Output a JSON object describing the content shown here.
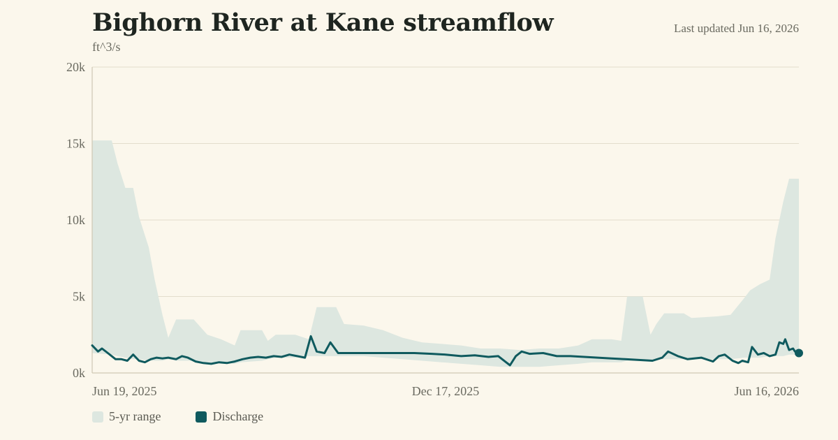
{
  "header": {
    "title": "Bighorn River at Kane streamflow",
    "last_updated": "Last updated Jun 16, 2026",
    "unit": "ft^3/s"
  },
  "legend": {
    "range_label": "5-yr range",
    "discharge_label": "Discharge"
  },
  "colors": {
    "background": "#fbf7ec",
    "range_fill": "#dde7e0",
    "discharge_line": "#0f5a5e",
    "gridline": "#e3ddcc",
    "axis": "#cfc8b4"
  },
  "chart_data": {
    "type": "area",
    "title": "Bighorn River at Kane streamflow",
    "ylabel": "ft^3/s",
    "xlabel": "",
    "x_range": [
      "2025-06-19",
      "2026-06-16"
    ],
    "ylim": [
      0,
      20000
    ],
    "y_ticks": [
      0,
      5000,
      10000,
      15000,
      20000
    ],
    "y_tick_labels": [
      "0k",
      "5k",
      "10k",
      "15k",
      "20k"
    ],
    "x_ticks": [
      "2025-06-19",
      "2025-12-17",
      "2026-06-16"
    ],
    "x_tick_labels": [
      "Jun 19, 2025",
      "Dec 17, 2025",
      "Jun 16, 2026"
    ],
    "grid": true,
    "legend_position": "bottom-left",
    "series": [
      {
        "name": "5-yr range",
        "kind": "range",
        "points": [
          [
            "2025-06-19",
            1300,
            15200
          ],
          [
            "2025-06-29",
            1200,
            15200
          ],
          [
            "2025-07-02",
            1100,
            13700
          ],
          [
            "2025-07-06",
            1000,
            12100
          ],
          [
            "2025-07-10",
            900,
            12100
          ],
          [
            "2025-07-13",
            900,
            10200
          ],
          [
            "2025-07-18",
            800,
            8200
          ],
          [
            "2025-07-21",
            800,
            6100
          ],
          [
            "2025-07-25",
            800,
            3800
          ],
          [
            "2025-07-28",
            900,
            2300
          ],
          [
            "2025-08-01",
            800,
            3500
          ],
          [
            "2025-08-10",
            800,
            3500
          ],
          [
            "2025-08-17",
            700,
            2500
          ],
          [
            "2025-08-24",
            700,
            2200
          ],
          [
            "2025-08-31",
            600,
            1800
          ],
          [
            "2025-09-03",
            700,
            2800
          ],
          [
            "2025-09-14",
            800,
            2800
          ],
          [
            "2025-09-17",
            900,
            2100
          ],
          [
            "2025-09-21",
            1000,
            2500
          ],
          [
            "2025-10-01",
            1000,
            2500
          ],
          [
            "2025-10-08",
            1100,
            2200
          ],
          [
            "2025-10-12",
            1100,
            4300
          ],
          [
            "2025-10-22",
            1100,
            4300
          ],
          [
            "2025-10-26",
            1100,
            3200
          ],
          [
            "2025-11-05",
            1100,
            3100
          ],
          [
            "2025-11-15",
            1000,
            2800
          ],
          [
            "2025-11-25",
            900,
            2300
          ],
          [
            "2025-12-05",
            800,
            2000
          ],
          [
            "2025-12-15",
            700,
            1900
          ],
          [
            "2025-12-25",
            600,
            1800
          ],
          [
            "2026-01-04",
            500,
            1600
          ],
          [
            "2026-01-14",
            400,
            1600
          ],
          [
            "2026-01-24",
            400,
            1500
          ],
          [
            "2026-02-03",
            400,
            1600
          ],
          [
            "2026-02-13",
            500,
            1600
          ],
          [
            "2026-02-23",
            600,
            1800
          ],
          [
            "2026-03-02",
            700,
            2200
          ],
          [
            "2026-03-12",
            700,
            2200
          ],
          [
            "2026-03-17",
            700,
            2100
          ],
          [
            "2026-03-20",
            800,
            5000
          ],
          [
            "2026-03-28",
            800,
            5000
          ],
          [
            "2026-04-01",
            800,
            2500
          ],
          [
            "2026-04-04",
            900,
            3200
          ],
          [
            "2026-04-08",
            900,
            3900
          ],
          [
            "2026-04-18",
            900,
            3900
          ],
          [
            "2026-04-22",
            900,
            3600
          ],
          [
            "2026-05-05",
            900,
            3700
          ],
          [
            "2026-05-12",
            900,
            3800
          ],
          [
            "2026-05-19",
            1000,
            4900
          ],
          [
            "2026-05-22",
            1000,
            5400
          ],
          [
            "2026-05-27",
            1000,
            5800
          ],
          [
            "2026-06-01",
            1100,
            6100
          ],
          [
            "2026-06-04",
            1100,
            8800
          ],
          [
            "2026-06-08",
            1100,
            11200
          ],
          [
            "2026-06-11",
            1200,
            12700
          ],
          [
            "2026-06-16",
            1200,
            12700
          ]
        ]
      },
      {
        "name": "Discharge",
        "kind": "line",
        "points": [
          [
            "2025-06-19",
            1800
          ],
          [
            "2025-06-22",
            1400
          ],
          [
            "2025-06-24",
            1600
          ],
          [
            "2025-06-27",
            1300
          ],
          [
            "2025-07-01",
            900
          ],
          [
            "2025-07-04",
            900
          ],
          [
            "2025-07-07",
            800
          ],
          [
            "2025-07-10",
            1200
          ],
          [
            "2025-07-13",
            800
          ],
          [
            "2025-07-16",
            700
          ],
          [
            "2025-07-19",
            900
          ],
          [
            "2025-07-22",
            1000
          ],
          [
            "2025-07-25",
            950
          ],
          [
            "2025-07-28",
            1000
          ],
          [
            "2025-08-01",
            900
          ],
          [
            "2025-08-04",
            1100
          ],
          [
            "2025-08-07",
            1000
          ],
          [
            "2025-08-11",
            750
          ],
          [
            "2025-08-15",
            650
          ],
          [
            "2025-08-19",
            600
          ],
          [
            "2025-08-23",
            700
          ],
          [
            "2025-08-27",
            650
          ],
          [
            "2025-08-31",
            750
          ],
          [
            "2025-09-04",
            900
          ],
          [
            "2025-09-08",
            1000
          ],
          [
            "2025-09-12",
            1050
          ],
          [
            "2025-09-16",
            1000
          ],
          [
            "2025-09-20",
            1100
          ],
          [
            "2025-09-24",
            1050
          ],
          [
            "2025-09-28",
            1200
          ],
          [
            "2025-10-02",
            1100
          ],
          [
            "2025-10-06",
            1000
          ],
          [
            "2025-10-09",
            2400
          ],
          [
            "2025-10-12",
            1400
          ],
          [
            "2025-10-16",
            1300
          ],
          [
            "2025-10-19",
            2000
          ],
          [
            "2025-10-23",
            1300
          ],
          [
            "2025-11-01",
            1300
          ],
          [
            "2025-11-15",
            1300
          ],
          [
            "2025-12-01",
            1300
          ],
          [
            "2025-12-10",
            1250
          ],
          [
            "2025-12-17",
            1200
          ],
          [
            "2025-12-25",
            1100
          ],
          [
            "2026-01-01",
            1150
          ],
          [
            "2026-01-08",
            1050
          ],
          [
            "2026-01-13",
            1100
          ],
          [
            "2026-01-17",
            700
          ],
          [
            "2026-01-19",
            500
          ],
          [
            "2026-01-22",
            1100
          ],
          [
            "2026-01-25",
            1400
          ],
          [
            "2026-01-29",
            1250
          ],
          [
            "2026-02-05",
            1300
          ],
          [
            "2026-02-12",
            1100
          ],
          [
            "2026-02-19",
            1100
          ],
          [
            "2026-02-26",
            1050
          ],
          [
            "2026-03-05",
            1000
          ],
          [
            "2026-03-12",
            950
          ],
          [
            "2026-03-19",
            900
          ],
          [
            "2026-03-26",
            850
          ],
          [
            "2026-04-02",
            800
          ],
          [
            "2026-04-07",
            1000
          ],
          [
            "2026-04-10",
            1400
          ],
          [
            "2026-04-15",
            1100
          ],
          [
            "2026-04-20",
            900
          ],
          [
            "2026-04-27",
            1000
          ],
          [
            "2026-05-03",
            750
          ],
          [
            "2026-05-06",
            1100
          ],
          [
            "2026-05-09",
            1200
          ],
          [
            "2026-05-13",
            800
          ],
          [
            "2026-05-16",
            650
          ],
          [
            "2026-05-18",
            800
          ],
          [
            "2026-05-21",
            700
          ],
          [
            "2026-05-23",
            1700
          ],
          [
            "2026-05-26",
            1200
          ],
          [
            "2026-05-29",
            1300
          ],
          [
            "2026-06-01",
            1100
          ],
          [
            "2026-06-04",
            1200
          ],
          [
            "2026-06-06",
            2000
          ],
          [
            "2026-06-08",
            1900
          ],
          [
            "2026-06-09",
            2200
          ],
          [
            "2026-06-11",
            1500
          ],
          [
            "2026-06-13",
            1600
          ],
          [
            "2026-06-14",
            1400
          ],
          [
            "2026-06-16",
            1300
          ]
        ]
      }
    ]
  }
}
